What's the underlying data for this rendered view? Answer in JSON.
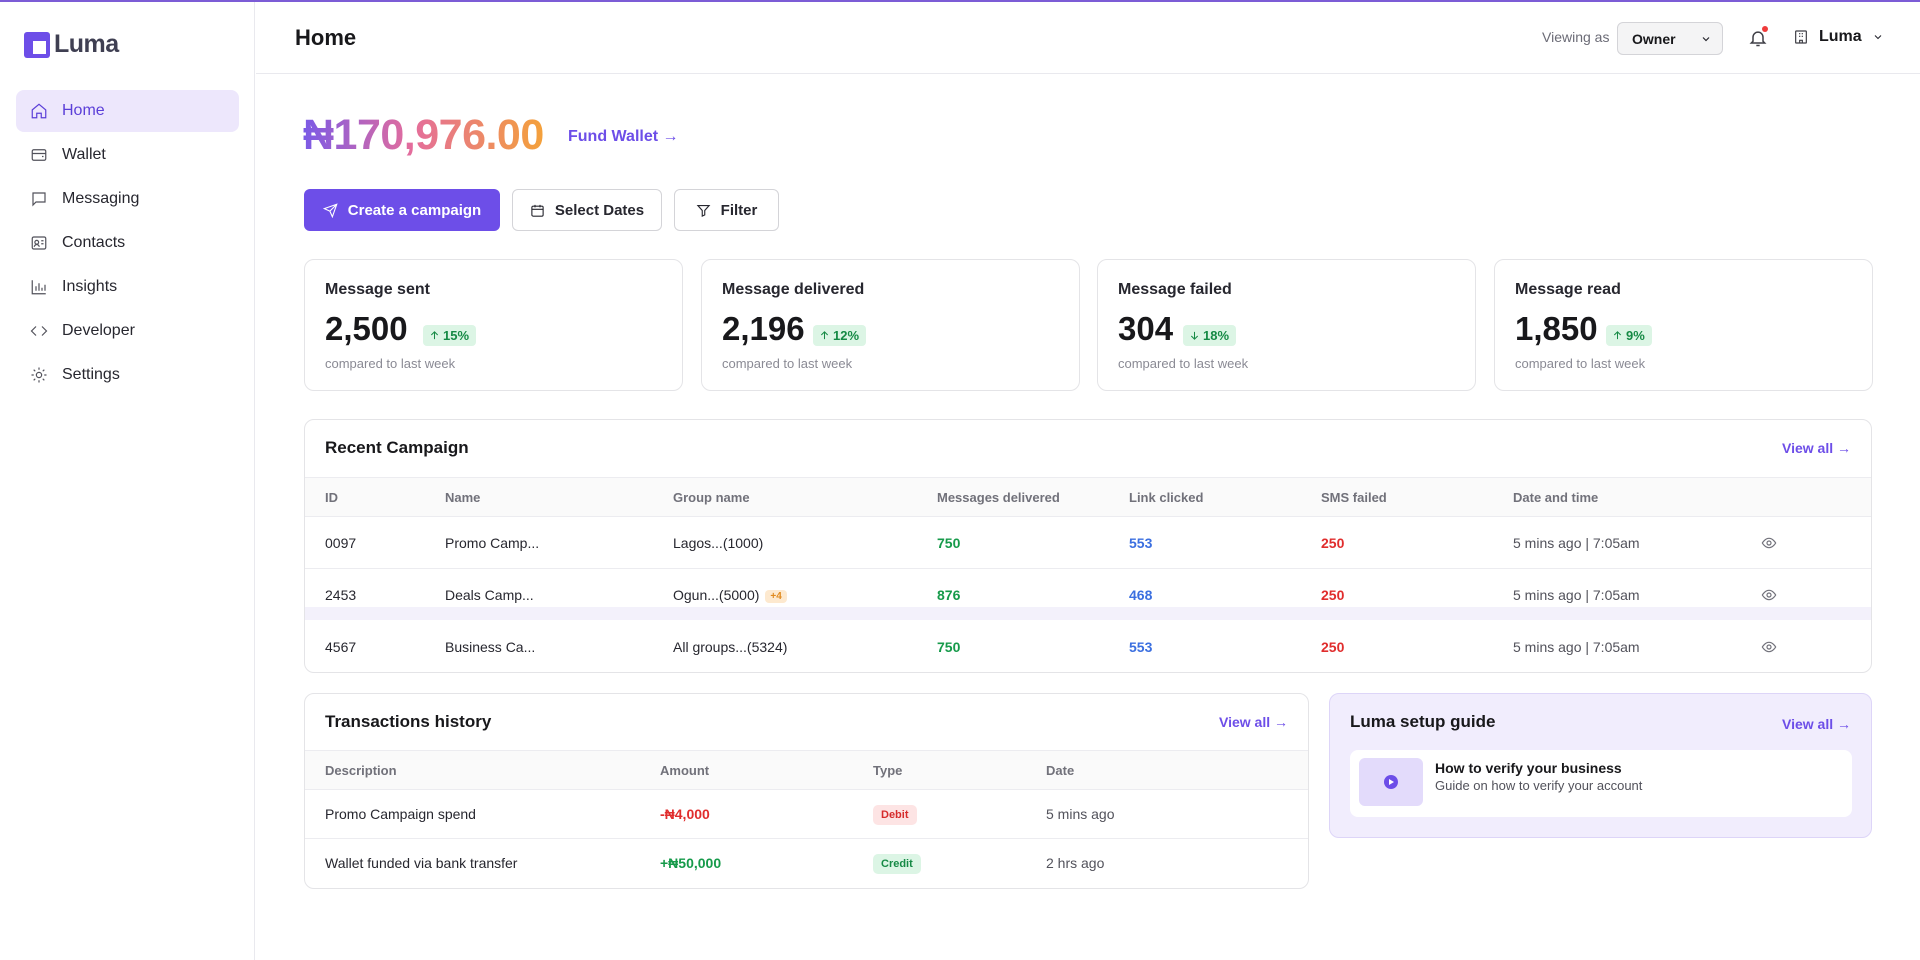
{
  "brand": {
    "name": "Luma",
    "accent": "#6d4ee8"
  },
  "sidebar": {
    "items": [
      {
        "label": "Home",
        "icon": "home-icon",
        "active": true
      },
      {
        "label": "Wallet",
        "icon": "wallet-icon",
        "active": false
      },
      {
        "label": "Messaging",
        "icon": "message-icon",
        "active": false
      },
      {
        "label": "Contacts",
        "icon": "contacts-icon",
        "active": false
      },
      {
        "label": "Insights",
        "icon": "chart-icon",
        "active": false
      },
      {
        "label": "Developer",
        "icon": "code-icon",
        "active": false
      },
      {
        "label": "Settings",
        "icon": "gear-icon",
        "active": false
      }
    ]
  },
  "header": {
    "title": "Home",
    "viewing_as_label": "Viewing as",
    "role": "Owner",
    "org_name": "Luma"
  },
  "wallet": {
    "balance": "₦170,976.00",
    "fund_link": "Fund Wallet →"
  },
  "actions": {
    "create_campaign": "Create a campaign",
    "select_dates": "Select Dates",
    "filter": "Filter"
  },
  "stats": [
    {
      "title": "Message sent",
      "value": "2,500",
      "change": "15%",
      "direction": "up",
      "sub": "compared to last week"
    },
    {
      "title": "Message delivered",
      "value": "2,196",
      "change": "12%",
      "direction": "up",
      "sub": "compared to last week"
    },
    {
      "title": "Message failed",
      "value": "304",
      "change": "18%",
      "direction": "down",
      "sub": "compared to last week"
    },
    {
      "title": "Message read",
      "value": "1,850",
      "change": "9%",
      "direction": "up",
      "sub": "compared to last week"
    }
  ],
  "campaigns": {
    "title": "Recent Campaign",
    "view_all": "View all →",
    "columns": [
      "ID",
      "Name",
      "Group name",
      "Messages delivered",
      "Link clicked",
      "SMS failed",
      "Date and time"
    ],
    "rows": [
      {
        "id": "0097",
        "name": "Promo Camp...",
        "group": "Lagos...(1000)",
        "extra": "",
        "delivered": "750",
        "clicked": "553",
        "failed": "250",
        "date": "5 mins ago | 7:05am"
      },
      {
        "id": "2453",
        "name": "Deals Camp...",
        "group": "Ogun...(5000)",
        "extra": "+4",
        "delivered": "876",
        "clicked": "468",
        "failed": "250",
        "date": "5 mins ago | 7:05am"
      },
      {
        "id": "4567",
        "name": "Business Ca...",
        "group": "All groups...(5324)",
        "extra": "",
        "delivered": "750",
        "clicked": "553",
        "failed": "250",
        "date": "5 mins ago | 7:05am"
      }
    ]
  },
  "transactions": {
    "title": "Transactions history",
    "view_all": "View all →",
    "columns": [
      "Description",
      "Amount",
      "Type",
      "Date"
    ],
    "rows": [
      {
        "description": "Promo Campaign spend",
        "amount": "-₦4,000",
        "type": "Debit",
        "date": "5 mins ago"
      },
      {
        "description": "Wallet funded via bank transfer",
        "amount": "+₦50,000",
        "type": "Credit",
        "date": "2 hrs ago"
      }
    ]
  },
  "guide": {
    "title": "Luma setup guide",
    "view_all": "View all →",
    "item_title": "How to verify your business",
    "item_subtitle": "Guide on how to verify your account"
  }
}
